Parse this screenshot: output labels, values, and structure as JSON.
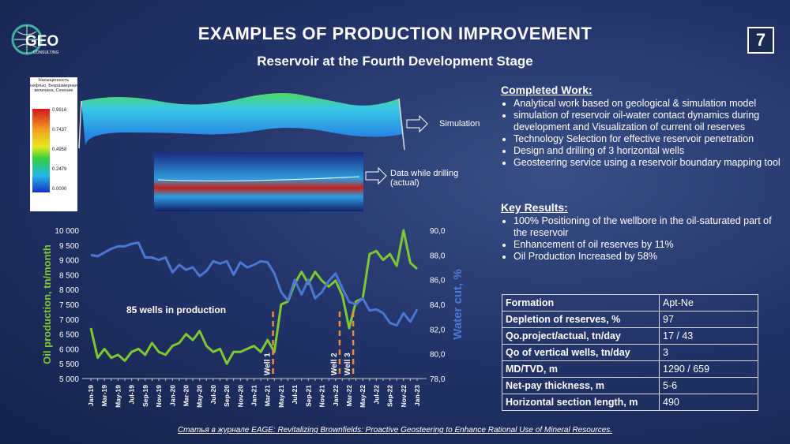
{
  "header": {
    "title": "EXAMPLES OF PRODUCTION IMPROVEMENT",
    "subtitle": "Reservoir at the Fourth Development Stage",
    "page": "7",
    "logo": "GEO",
    "logo_sub": "CONSULTING"
  },
  "figure": {
    "colorbar_title": "Насыщенность нефтью, Безразмерная величина, Сечение",
    "colorbar_ticks": [
      "0.9916",
      "0.7437",
      "0.4958",
      "0.2479",
      "0.0000"
    ],
    "simulation_label": "Simulation",
    "drilling_label": "Data while drilling (actual)"
  },
  "completed_work": {
    "heading": "Completed Work:",
    "items": [
      "Analytical work based on geological & simulation model",
      "simulation of  reservoir  oil-water contact dynamics during development and Visualization of current oil reserves",
      "Technology Selection for effective reservoir penetration",
      "Design and drilling of 3 horizontal wells",
      "Geosteering service  using a reservoir boundary mapping tool"
    ]
  },
  "key_results": {
    "heading": "Key Results:",
    "items": [
      "100% Positioning of the wellbore in the oil-saturated part of the reservoir",
      "Enhancement of oil reserves by 11%",
      "Oil Production Increased by 58%"
    ]
  },
  "table": {
    "rows": [
      [
        "Formation",
        "Apt-Ne"
      ],
      [
        "Depletion of reserves, %",
        "97"
      ],
      [
        "Qo.project/actual, tn/day",
        "17 / 43"
      ],
      [
        "Qo of vertical wells, tn/day",
        "3"
      ],
      [
        "MD/TVD, m",
        "1290 / 659"
      ],
      [
        "Net-pay thickness, m",
        "5-6"
      ],
      [
        "Horizontal section length, m",
        "490"
      ]
    ]
  },
  "footnote": "Статья в журнале EAGE: Revitalizing Brownfields: Proactive Geosteering to Enhance Rational Use of Mineral Resources.",
  "chart_data": {
    "type": "line",
    "categories": [
      "Jan-19",
      null,
      "Mar-19",
      null,
      "May-19",
      null,
      "Jul-19",
      null,
      "Sep-19",
      null,
      "Nov-19",
      null,
      "Jan-20",
      null,
      "Mar-20",
      null,
      "May-20",
      null,
      "Jul-20",
      null,
      "Sep-20",
      null,
      "Nov-20",
      null,
      "Jan-21",
      null,
      "Mar-21",
      null,
      "May-21",
      null,
      "Jul-21",
      null,
      "Sep-21",
      null,
      "Nov-21",
      null,
      "Jan-22",
      null,
      "Mar-22",
      null,
      "May-22",
      null,
      "Jul-22",
      null,
      "Sep-22",
      null,
      "Nov-22",
      null,
      "Jan-23"
    ],
    "series": [
      {
        "name": "Oil production, tn/month",
        "color": "#7ec832",
        "axis": "y",
        "values": [
          6700,
          5700,
          6000,
          5700,
          5800,
          5600,
          5900,
          6000,
          5800,
          6200,
          5900,
          5800,
          6100,
          6200,
          6500,
          6300,
          6600,
          6100,
          5900,
          6000,
          5500,
          5900,
          5900,
          6000,
          6100,
          5900,
          6300,
          5900,
          7500,
          7600,
          8200,
          8600,
          8200,
          8600,
          8300,
          8100,
          8300,
          7800,
          6700,
          7600,
          7700,
          9200,
          9300,
          9000,
          9200,
          8800,
          10000,
          8900,
          8700
        ]
      },
      {
        "name": "Water cut, %",
        "color": "#4a78d0",
        "axis": "y2",
        "values": [
          88.0,
          87.9,
          88.2,
          88.5,
          88.7,
          88.7,
          88.9,
          89.0,
          87.8,
          87.8,
          87.6,
          87.8,
          86.6,
          87.2,
          86.8,
          87.0,
          86.3,
          86.7,
          87.5,
          87.3,
          87.5,
          86.4,
          87.4,
          87.0,
          87.2,
          87.5,
          87.4,
          86.5,
          85.0,
          84.3,
          86.0,
          84.8,
          86.0,
          84.5,
          85.0,
          85.9,
          86.5,
          85.3,
          84.2,
          84.0,
          84.5,
          83.5,
          83.6,
          83.3,
          82.5,
          82.3,
          83.3,
          82.6,
          83.6
        ]
      }
    ],
    "ylim": [
      5000,
      10000
    ],
    "yticks": [
      {
        "value": 5000,
        "label": "5 000"
      },
      {
        "value": 5500,
        "label": "5 500"
      },
      {
        "value": 6000,
        "label": "6 000"
      },
      {
        "value": 6500,
        "label": "6 500"
      },
      {
        "value": 7000,
        "label": "7 000"
      },
      {
        "value": 7500,
        "label": "7 500"
      },
      {
        "value": 8000,
        "label": "8 000"
      },
      {
        "value": 8500,
        "label": "8 500"
      },
      {
        "value": 9000,
        "label": "9 000"
      },
      {
        "value": 9500,
        "label": "9 500"
      },
      {
        "value": 10000,
        "label": "10 000"
      }
    ],
    "y2lim": [
      78,
      90
    ],
    "y2ticks": [
      {
        "value": 78,
        "label": "78,0"
      },
      {
        "value": 80,
        "label": "80,0"
      },
      {
        "value": 82,
        "label": "82,0"
      },
      {
        "value": 84,
        "label": "84,0"
      },
      {
        "value": 86,
        "label": "86,0"
      },
      {
        "value": 88,
        "label": "88,0"
      },
      {
        "value": 90,
        "label": "90,0"
      }
    ],
    "ylabel": "Oil production, tn/month",
    "y2label": "Water cut, %",
    "annotations": [
      "85 wells in production",
      "Well 1",
      "Well 2",
      "Well 3"
    ],
    "grid": false
  }
}
